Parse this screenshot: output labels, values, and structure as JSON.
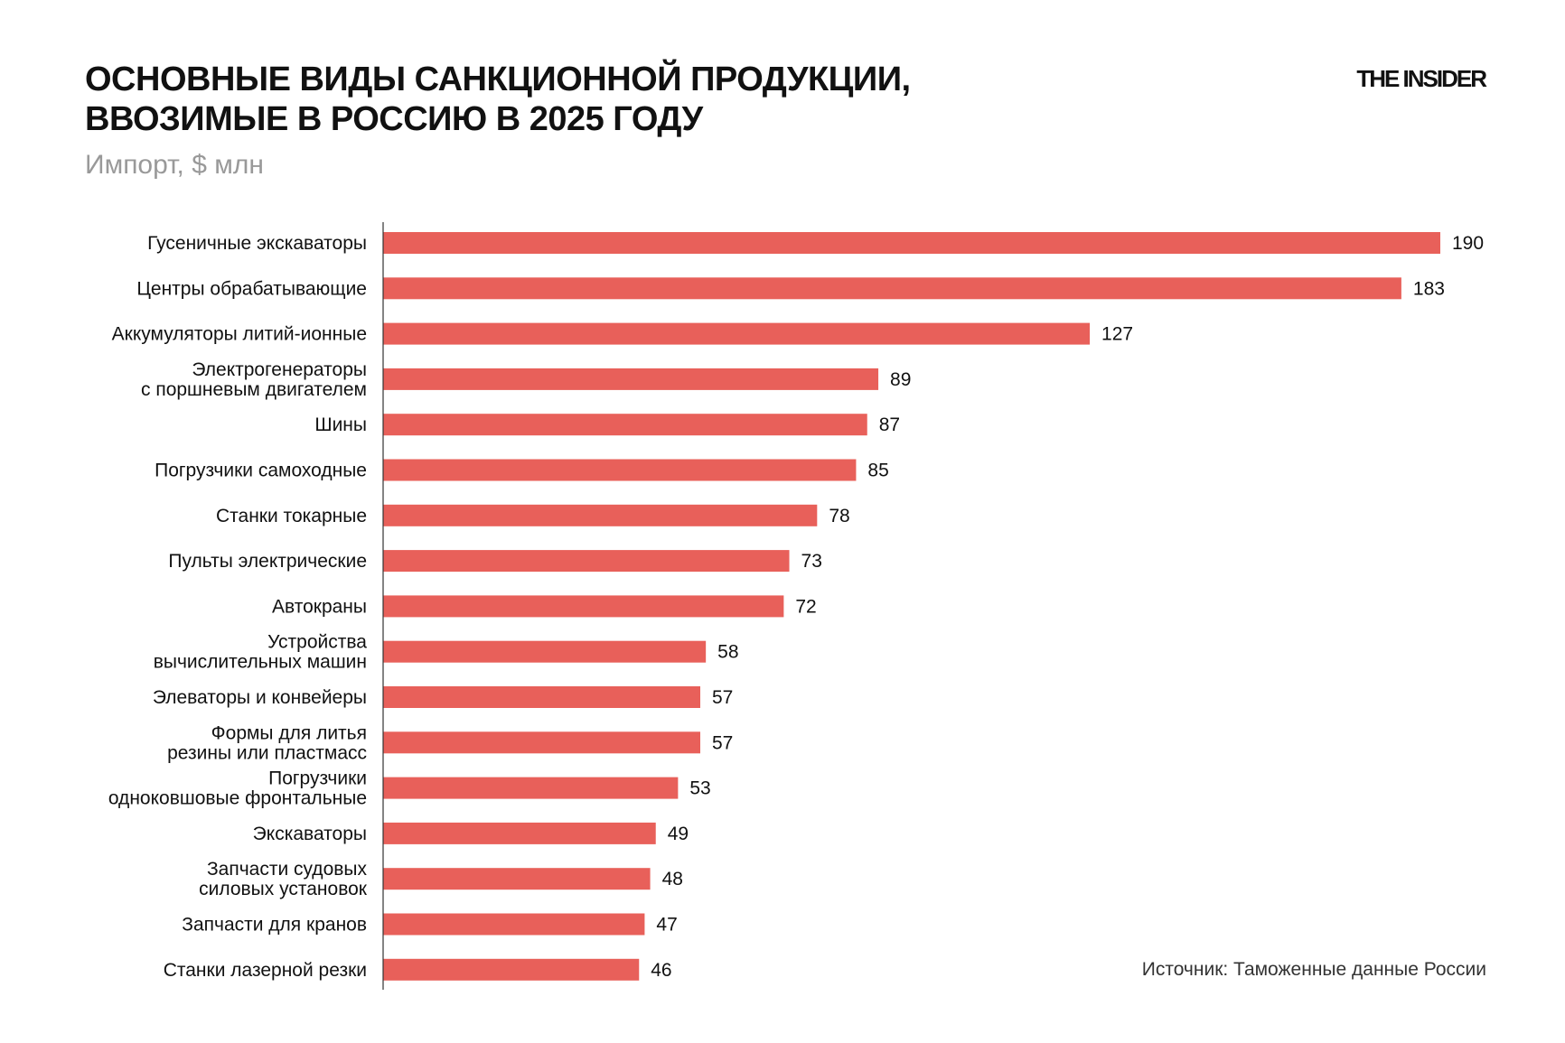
{
  "title_lines": [
    "ОСНОВНЫЕ ВИДЫ САНКЦИОННОЙ ПРОДУКЦИИ,",
    "ВВОЗИМЫЕ В РОССИЮ В 2025 ГОДУ"
  ],
  "subtitle": "Импорт, $ млн",
  "logo": "THE INSIDER",
  "source": "Источник: Таможенные данные России",
  "chart_data": {
    "type": "bar",
    "orientation": "horizontal",
    "title": "ОСНОВНЫЕ ВИДЫ САНКЦИОННОЙ ПРОДУКЦИИ, ВВОЗИМЫЕ В РОССИЮ В 2025 ГОДУ",
    "subtitle": "Импорт, $ млн",
    "categories": [
      [
        "Гусеничные экскаваторы"
      ],
      [
        "Центры обрабатывающие"
      ],
      [
        "Аккумуляторы литий-ионные"
      ],
      [
        "Электрогенераторы",
        "с поршневым двигателем"
      ],
      [
        "Шины"
      ],
      [
        "Погрузчики самоходные"
      ],
      [
        "Станки токарные"
      ],
      [
        "Пульты электрические"
      ],
      [
        "Автокраны"
      ],
      [
        "Устройства",
        "вычислительных машин"
      ],
      [
        "Элеваторы и конвейеры"
      ],
      [
        "Формы для литья",
        "резины или пластмасс"
      ],
      [
        "Погрузчики",
        "одноковшовые фронтальные"
      ],
      [
        "Экскаваторы"
      ],
      [
        "Запчасти судовых",
        "силовых установок"
      ],
      [
        "Запчасти для кранов"
      ],
      [
        "Станки лазерной резки"
      ]
    ],
    "values": [
      190,
      183,
      127,
      89,
      87,
      85,
      78,
      73,
      72,
      58,
      57,
      57,
      53,
      49,
      48,
      47,
      46
    ],
    "xlim": [
      0,
      190
    ],
    "grid": false,
    "data_labels": true,
    "bar_color": "#e8605a"
  }
}
